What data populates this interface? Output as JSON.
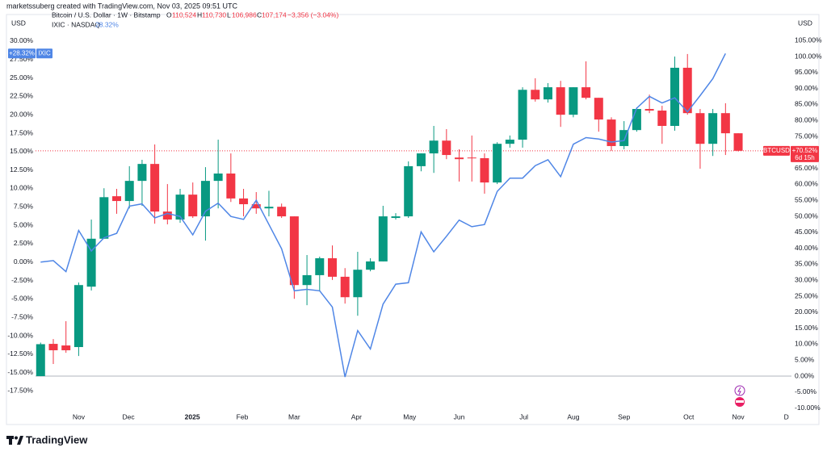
{
  "header": {
    "watermark": "marketssuberg created with TradingView.com, Nov 03, 2025 09:51 UTC",
    "currency_left": "USD",
    "currency_right": "USD"
  },
  "legend": {
    "main": "Bitcoin / U.S. Dollar · 1W · Bitstamp",
    "o_key": "O",
    "o_val": "110,524",
    "h_key": "H",
    "h_val": "110,730",
    "l_key": "L",
    "l_val": "106,986",
    "c_key": "C",
    "c_val": "107,174",
    "change": "−3,356 (−3.04%)",
    "compare": "IXIC · NASDAQ",
    "compare_value": "28.32%"
  },
  "chart_data": {
    "type": "candlestick",
    "xlim": [
      -0.4,
      59.2
    ],
    "xticks": [
      {
        "value": 3.0,
        "label": "Nov"
      },
      {
        "value": 6.93,
        "label": "Dec"
      },
      {
        "value": 11.96,
        "label": "2025"
      },
      {
        "value": 15.9,
        "label": "Feb"
      },
      {
        "value": 20.0,
        "label": "Mar"
      },
      {
        "value": 24.9,
        "label": "Apr"
      },
      {
        "value": 29.1,
        "label": "May"
      },
      {
        "value": 33.0,
        "label": "Jun"
      },
      {
        "value": 38.1,
        "label": "Jul"
      },
      {
        "value": 42.0,
        "label": "Aug"
      },
      {
        "value": 46.0,
        "label": "Sep"
      },
      {
        "value": 51.1,
        "label": "Oct"
      },
      {
        "value": 55.0,
        "label": "Nov"
      },
      {
        "value": 58.8,
        "label": "D"
      }
    ],
    "ylim": [
      -20.3,
      31.2
    ],
    "yticks": [
      {
        "value": 30,
        "label": "30.00%"
      },
      {
        "value": 27.5,
        "label": "27.50%"
      },
      {
        "value": 25,
        "label": "25.00%"
      },
      {
        "value": 22.5,
        "label": "22.50%"
      },
      {
        "value": 20,
        "label": "20.00%"
      },
      {
        "value": 17.5,
        "label": "17.50%"
      },
      {
        "value": 15,
        "label": "15.00%"
      },
      {
        "value": 12.5,
        "label": "12.50%"
      },
      {
        "value": 10,
        "label": "10.00%"
      },
      {
        "value": 7.5,
        "label": "7.50%"
      },
      {
        "value": 5,
        "label": "5.00%"
      },
      {
        "value": 2.5,
        "label": "2.50%"
      },
      {
        "value": 0,
        "label": "0.00%"
      },
      {
        "value": -2.5,
        "label": "-2.50%"
      },
      {
        "value": -5,
        "label": "-5.00%"
      },
      {
        "value": -7.5,
        "label": "-7.50%"
      },
      {
        "value": -10,
        "label": "-10.00%"
      },
      {
        "value": -12.5,
        "label": "-12.50%"
      },
      {
        "value": -15,
        "label": "-15.00%"
      },
      {
        "value": -17.5,
        "label": "-17.50%"
      }
    ],
    "y2lim": [
      -11.1,
      107.6
    ],
    "y2ticks": [
      {
        "value": 105,
        "label": "105.00%"
      },
      {
        "value": 100,
        "label": "100.00%"
      },
      {
        "value": 95,
        "label": "95.00%"
      },
      {
        "value": 90,
        "label": "90.00%"
      },
      {
        "value": 85,
        "label": "85.00%"
      },
      {
        "value": 80,
        "label": "80.00%"
      },
      {
        "value": 75,
        "label": "75.00%"
      },
      {
        "value": 70,
        "label": "70.00%"
      },
      {
        "value": 65,
        "label": "65.00%"
      },
      {
        "value": 60,
        "label": "60.00%"
      },
      {
        "value": 55,
        "label": "55.00%"
      },
      {
        "value": 50,
        "label": "50.00%"
      },
      {
        "value": 45,
        "label": "45.00%"
      },
      {
        "value": 40,
        "label": "40.00%"
      },
      {
        "value": 35,
        "label": "35.00%"
      },
      {
        "value": 30,
        "label": "30.00%"
      },
      {
        "value": 25,
        "label": "25.00%"
      },
      {
        "value": 20,
        "label": "20.00%"
      },
      {
        "value": 15,
        "label": "15.00%"
      },
      {
        "value": 10,
        "label": "10.00%"
      },
      {
        "value": 5,
        "label": "5.00%"
      },
      {
        "value": 0,
        "label": "0.00%"
      },
      {
        "value": -5,
        "label": "-5.00%"
      },
      {
        "value": -10,
        "label": "-10.00%"
      }
    ],
    "series": [
      {
        "name": "BTCUSD",
        "axis": "y2",
        "up_color": "#089981",
        "down_color": "#f23645",
        "tag": {
          "label": "+70.52%",
          "extra": "6d 15h"
        },
        "open": [
          0,
          10.1,
          9.6,
          9.1,
          28,
          43,
          56.3,
          54.8,
          61.1,
          66.4,
          51.5,
          49,
          56.8,
          50,
          61.1,
          63.4,
          55.6,
          53.8,
          52.5,
          53,
          50,
          28.5,
          31.6,
          36.9,
          31.1,
          24.7,
          33.3,
          35.9,
          49.5,
          50,
          65.7,
          69.7,
          73.7,
          68.4,
          68.4,
          68.2,
          60.6,
          72.7,
          74,
          89.6,
          86.6,
          90.4,
          81.8,
          90.4,
          87.1,
          80.3,
          72,
          77,
          83.6,
          83.1,
          78.3,
          96.5,
          82.3,
          72.7,
          82.3,
          76
        ],
        "high": [
          10.5,
          11.6,
          17.2,
          29.3,
          49,
          58.8,
          58.6,
          65.7,
          67.7,
          72.5,
          60.1,
          58.6,
          60.6,
          65.4,
          74,
          69.7,
          58.6,
          57.6,
          58,
          54,
          50,
          37.9,
          37.4,
          40.9,
          33.8,
          38.9,
          36.9,
          53.3,
          51,
          67.2,
          69.7,
          78.3,
          77.3,
          71,
          75.3,
          69.7,
          73.2,
          75.3,
          90.4,
          93.2,
          91.7,
          92.4,
          90.4,
          98.5,
          87.1,
          81,
          79.8,
          84.1,
          88.1,
          84.6,
          100,
          100.8,
          83.6,
          83.6,
          85.4,
          76
        ],
        "low": [
          0,
          3.8,
          7.3,
          6.3,
          26.8,
          43,
          50.8,
          52.5,
          53.3,
          47.7,
          47.5,
          48,
          49.5,
          42.4,
          52.5,
          54.5,
          50,
          50.8,
          50,
          49.5,
          24.2,
          22.2,
          26.5,
          30.1,
          22.7,
          18.9,
          32.8,
          35.9,
          49,
          49.5,
          64.1,
          63.6,
          67.9,
          60.9,
          60.9,
          57.1,
          60.1,
          71.5,
          71.5,
          85.9,
          85.6,
          78,
          81,
          86.6,
          76.5,
          70.5,
          71,
          76.5,
          82.3,
          72.7,
          76.8,
          81.8,
          64.9,
          68.9,
          69.2,
          70.3
        ],
        "close": [
          10,
          8.1,
          8.1,
          28.5,
          43,
          56,
          54.8,
          61.1,
          66.4,
          51.5,
          49,
          56.8,
          50,
          61.1,
          63.4,
          55.6,
          53.8,
          52.5,
          53,
          50,
          28.5,
          31.6,
          36.9,
          31.1,
          24.7,
          33.3,
          35.9,
          50,
          50,
          65.7,
          69.7,
          73.7,
          69.2,
          67.9,
          68.2,
          60.6,
          72.7,
          74,
          89.6,
          86.6,
          90.4,
          81.8,
          90.4,
          87.1,
          80.3,
          72,
          77,
          83.6,
          83.1,
          78.3,
          96.5,
          82.3,
          72.7,
          82.3,
          76,
          70.52
        ]
      },
      {
        "name": "IXIC",
        "type": "line",
        "color": "#4f86e6",
        "tag": {
          "label": "+28.32%"
        },
        "values": [
          0,
          0.2,
          -1.3,
          4.3,
          1.5,
          3.3,
          3.9,
          7.6,
          7.9,
          6,
          6.6,
          6.2,
          3.7,
          6.9,
          8,
          6.2,
          5.8,
          8.4,
          5.1,
          1.8,
          -3.9,
          -3.7,
          -3.9,
          -6.1,
          -15.6,
          -9.3,
          -11.8,
          -5.7,
          -3,
          -2.8,
          4.1,
          1.4,
          3.5,
          5.7,
          4.8,
          5.1,
          9.6,
          11.4,
          11.4,
          13.1,
          13.9,
          11.6,
          16,
          16.9,
          16.7,
          16.3,
          16.5,
          20.9,
          22.5,
          21.6,
          22.3,
          20.4,
          22.6,
          24.9,
          28.32,
          null
        ]
      }
    ]
  },
  "footer": {
    "brand": "TradingView"
  }
}
